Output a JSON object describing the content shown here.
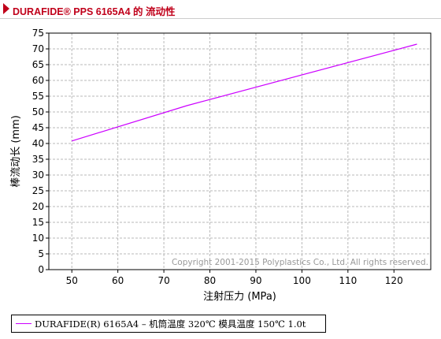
{
  "page_title": "DURAFIDE® PPS 6165A4 的 流动性",
  "chart_data": {
    "type": "line",
    "xlabel": "注射压力 (MPa)",
    "ylabel": "棒流动长 (mm)",
    "xlim": [
      45,
      128
    ],
    "ylim": [
      0,
      75
    ],
    "x_ticks": [
      50,
      60,
      70,
      80,
      90,
      100,
      110,
      120
    ],
    "y_ticks": [
      0,
      5,
      10,
      15,
      20,
      25,
      30,
      35,
      40,
      45,
      50,
      55,
      60,
      65,
      70,
      75
    ],
    "grid": true,
    "series": [
      {
        "name": "DURAFIDE(R) 6165A4 – 机筒温度 320℃ 模具温度 150℃ 1.0t",
        "color": "#cc00ff",
        "x": [
          50,
          75,
          125
        ],
        "y": [
          40.8,
          52.0,
          71.5
        ]
      }
    ],
    "watermark": "Copyright 2001-2015 Polyplastics Co., Ltd. All rights reserved.",
    "legend_position": "bottom-left"
  },
  "colors": {
    "title": "#c0001a",
    "series": "#cc00ff",
    "grid": "#b8b8b8",
    "watermark": "#999999"
  }
}
